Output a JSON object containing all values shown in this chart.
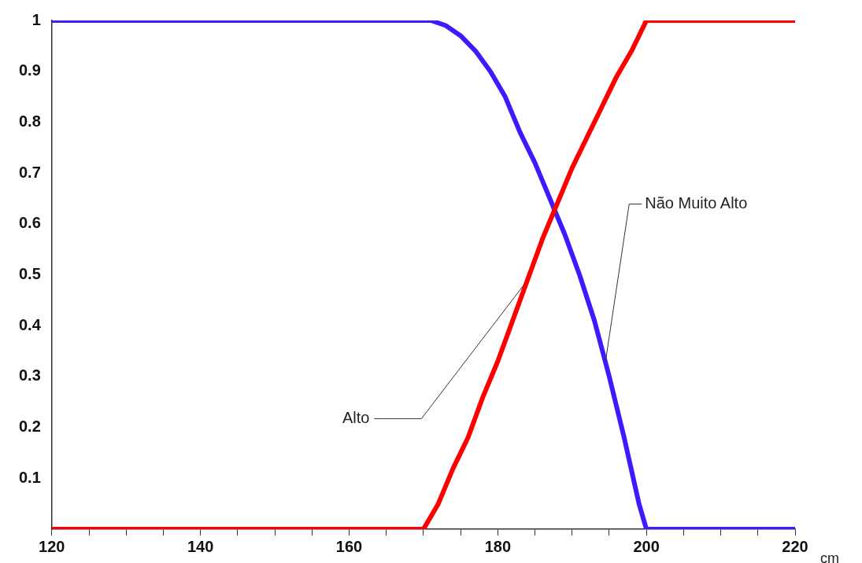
{
  "chart_data": {
    "type": "line",
    "xlabel": "cm",
    "xlim": [
      120,
      220
    ],
    "xticks": [
      120,
      {
        "value": 125,
        "label": null
      },
      {
        "value": 130,
        "label": null
      },
      {
        "value": 135,
        "label": null
      },
      140,
      {
        "value": 145,
        "label": null
      },
      {
        "value": 150,
        "label": null
      },
      {
        "value": 155,
        "label": null
      },
      160,
      {
        "value": 165,
        "label": null
      },
      {
        "value": 170,
        "label": null
      },
      {
        "value": 175,
        "label": null
      },
      180,
      {
        "value": 185,
        "label": null
      },
      {
        "value": 190,
        "label": null
      },
      {
        "value": 195,
        "label": null
      },
      200,
      {
        "value": 205,
        "label": null
      },
      {
        "value": 210,
        "label": null
      },
      {
        "value": 215,
        "label": null
      },
      220
    ],
    "ylim": [
      0,
      1
    ],
    "yticks": [
      0.1,
      0.2,
      0.3,
      0.4,
      0.5,
      0.6,
      0.7,
      0.8,
      0.9,
      1
    ],
    "grid": false,
    "legend": false,
    "marker": "none",
    "line_style": "solid",
    "series": [
      {
        "color": "#ff0000",
        "x": [
          120,
          170,
          172,
          174,
          176,
          178,
          180,
          182,
          184,
          186,
          188,
          190,
          192,
          194,
          196,
          198,
          200,
          220
        ],
        "values": [
          0,
          0,
          0.05,
          0.12,
          0.18,
          0.26,
          0.33,
          0.41,
          0.49,
          0.57,
          0.64,
          0.71,
          0.77,
          0.83,
          0.89,
          0.94,
          1,
          1
        ]
      },
      {
        "color": "#3c1cff",
        "x": [
          120,
          171,
          173,
          175,
          177,
          179,
          181,
          183,
          185,
          187,
          189,
          191,
          193,
          195,
          197,
          199,
          200,
          220
        ],
        "values": [
          1,
          1,
          0.99,
          0.97,
          0.94,
          0.9,
          0.85,
          0.78,
          0.72,
          0.65,
          0.58,
          0.5,
          0.41,
          0.3,
          0.18,
          0.05,
          0,
          0
        ]
      }
    ],
    "annotations": [
      {
        "text": "Alto",
        "x": 183.5,
        "y": 0.48
      },
      {
        "text": "Não Muito Alto",
        "x": 194.5,
        "y": 0.33
      }
    ]
  }
}
